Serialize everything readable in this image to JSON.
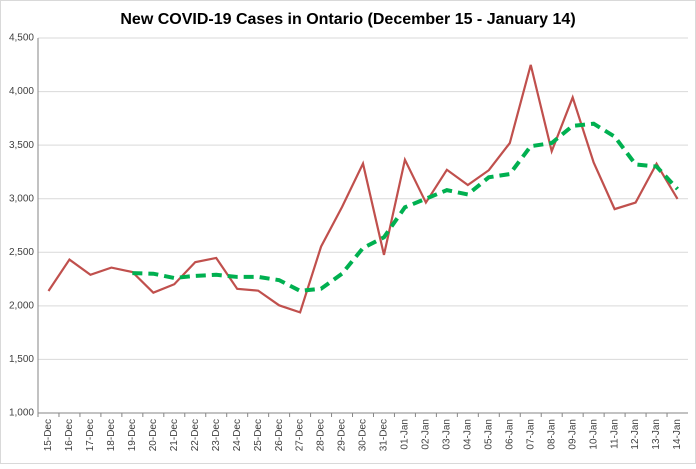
{
  "chart_data": {
    "type": "line",
    "title": "New COVID-19 Cases in Ontario (December 15 - January 14)",
    "categories": [
      "15-Dec",
      "16-Dec",
      "17-Dec",
      "18-Dec",
      "19-Dec",
      "20-Dec",
      "21-Dec",
      "22-Dec",
      "23-Dec",
      "24-Dec",
      "25-Dec",
      "26-Dec",
      "27-Dec",
      "28-Dec",
      "29-Dec",
      "30-Dec",
      "31-Dec",
      "01-Jan",
      "02-Jan",
      "03-Jan",
      "04-Jan",
      "05-Jan",
      "06-Jan",
      "07-Jan",
      "08-Jan",
      "09-Jan",
      "10-Jan",
      "11-Jan",
      "12-Jan",
      "13-Jan",
      "14-Jan"
    ],
    "series": [
      {
        "color": "#c0504d",
        "dashed": false,
        "values": [
          2139,
          2432,
          2290,
          2357,
          2316,
          2123,
          2202,
          2408,
          2447,
          2159,
          2142,
          2005,
          1939,
          2553,
          2923,
          3328,
          2476,
          3363,
          2964,
          3270,
          3128,
          3266,
          3519,
          4249,
          3443,
          3945,
          3338,
          2903,
          2964,
          3326,
          2998
        ]
      },
      {
        "color": "#00b050",
        "dashed": true,
        "values": [
          null,
          null,
          null,
          null,
          2305,
          2300,
          2260,
          2280,
          2290,
          2270,
          2270,
          2240,
          2140,
          2160,
          2300,
          2540,
          2640,
          2920,
          3000,
          3080,
          3040,
          3200,
          3230,
          3490,
          3520,
          3680,
          3700,
          3580,
          3320,
          3300,
          3090
        ]
      }
    ],
    "ylim": [
      1000,
      4500
    ],
    "yticks": [
      {
        "value": 1000,
        "label": "1,000"
      },
      {
        "value": 1500,
        "label": "1,500"
      },
      {
        "value": 2000,
        "label": "2,000"
      },
      {
        "value": 2500,
        "label": "2,500"
      },
      {
        "value": 3000,
        "label": "3,000"
      },
      {
        "value": 3500,
        "label": "3,500"
      },
      {
        "value": 4000,
        "label": "4,000"
      },
      {
        "value": 4500,
        "label": "4,500"
      }
    ],
    "grid": true
  }
}
